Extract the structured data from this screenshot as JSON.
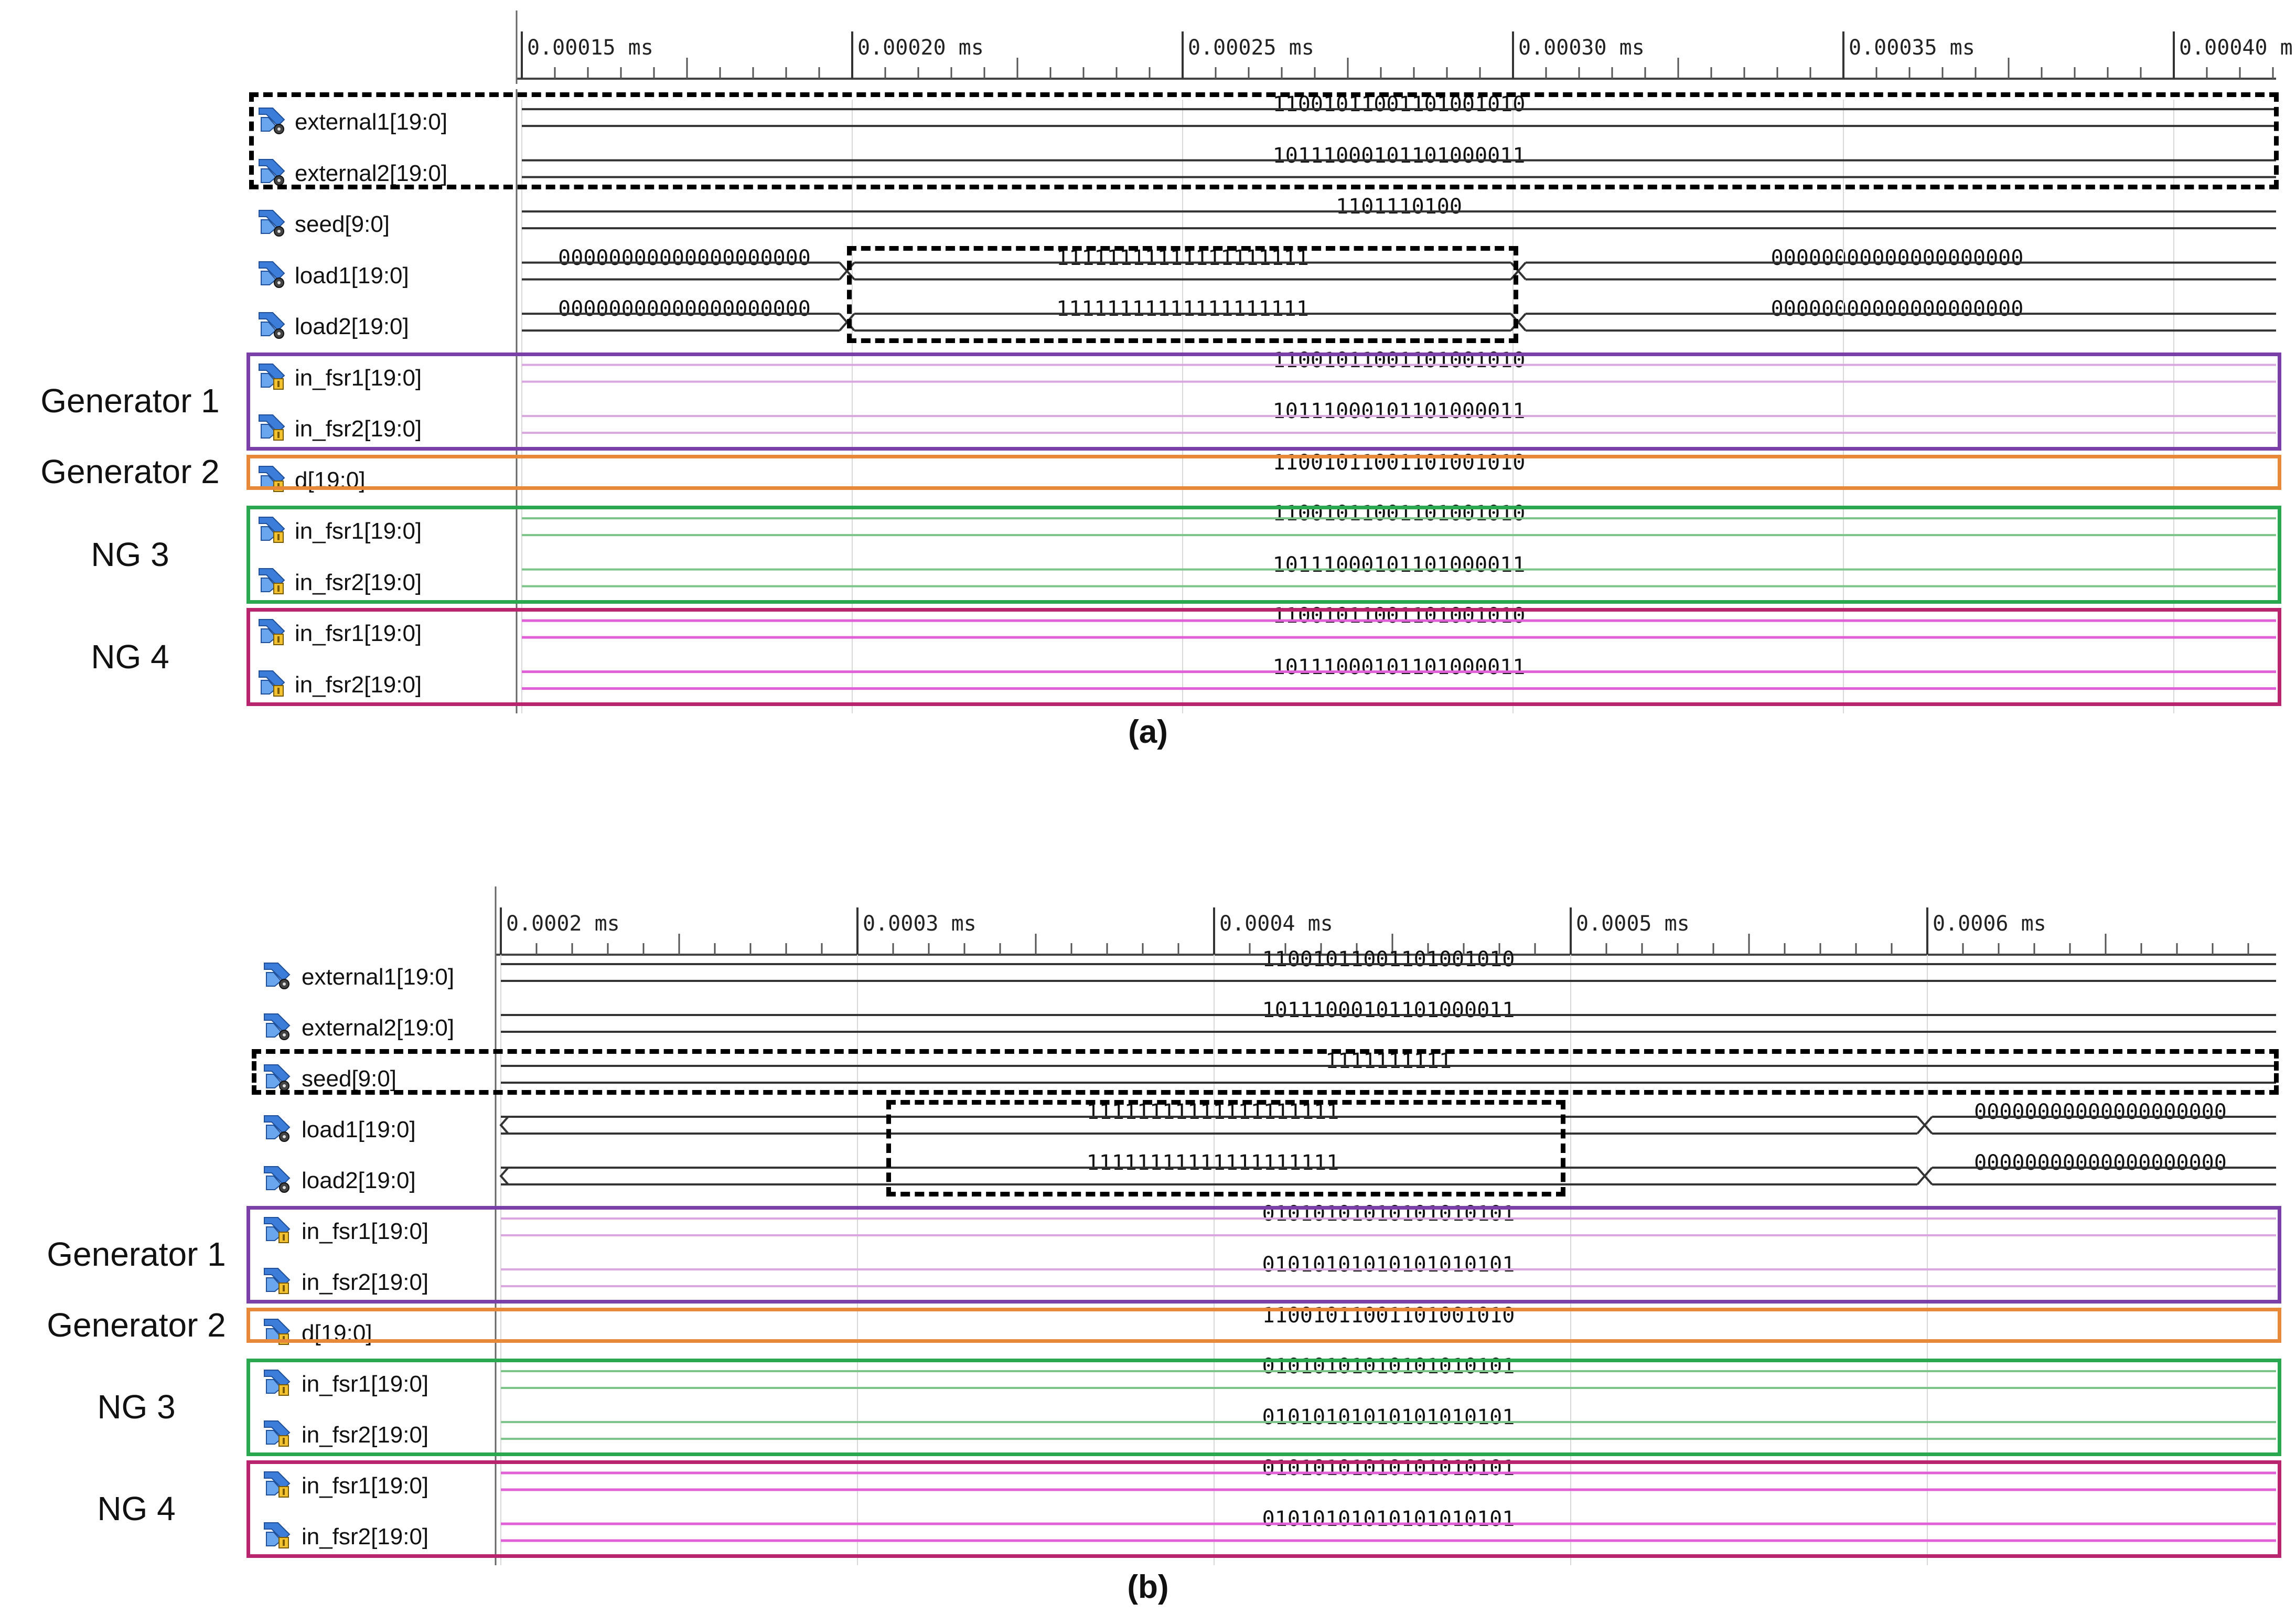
{
  "panels": [
    {
      "id": "a",
      "caption": "(a)",
      "ticks": [
        "0.00015 ms",
        "0.00020 ms",
        "0.00025 ms",
        "0.00030 ms",
        "0.00035 ms",
        "0.00040 m"
      ],
      "signals": [
        {
          "name": "external1[19:0]",
          "icon": "register-icon",
          "waves": [
            {
              "value": "11001011001101001010",
              "style": "bus"
            }
          ]
        },
        {
          "name": "external2[19:0]",
          "icon": "register-icon",
          "waves": [
            {
              "value": "10111000101101000011",
              "style": "bus"
            }
          ]
        },
        {
          "name": "seed[9:0]",
          "icon": "register-icon",
          "waves": [
            {
              "value": "1101110100",
              "style": "bus"
            }
          ]
        },
        {
          "name": "load1[19:0]",
          "icon": "register-icon",
          "waves": [
            {
              "value": "00000000000000000000",
              "style": "bus"
            },
            {
              "value": "11111111111111111111",
              "style": "bus"
            },
            {
              "value": "00000000000000000000",
              "style": "bus"
            }
          ]
        },
        {
          "name": "load2[19:0]",
          "icon": "register-icon",
          "waves": [
            {
              "value": "00000000000000000000",
              "style": "bus"
            },
            {
              "value": "11111111111111111111",
              "style": "bus"
            },
            {
              "value": "00000000000000000000",
              "style": "bus"
            }
          ]
        },
        {
          "name": "in_fsr1[19:0]",
          "icon": "wire-icon",
          "waves": [
            {
              "value": "11001011001101001010",
              "style": "violet"
            }
          ]
        },
        {
          "name": "in_fsr2[19:0]",
          "icon": "wire-icon",
          "waves": [
            {
              "value": "10111000101101000011",
              "style": "violet"
            }
          ]
        },
        {
          "name": "d[19:0]",
          "icon": "wire-icon",
          "waves": [
            {
              "value": "11001011001101001010",
              "style": "none"
            }
          ]
        },
        {
          "name": "in_fsr1[19:0]",
          "icon": "wire-icon",
          "waves": [
            {
              "value": "11001011001101001010",
              "style": "green"
            }
          ]
        },
        {
          "name": "in_fsr2[19:0]",
          "icon": "wire-icon",
          "waves": [
            {
              "value": "10111000101101000011",
              "style": "green"
            }
          ]
        },
        {
          "name": "in_fsr1[19:0]",
          "icon": "wire-icon",
          "waves": [
            {
              "value": "11001011001101001010",
              "style": "magenta"
            }
          ]
        },
        {
          "name": "in_fsr2[19:0]",
          "icon": "wire-icon",
          "waves": [
            {
              "value": "10111000101101000011",
              "style": "magenta"
            }
          ]
        }
      ],
      "groups": [
        {
          "label": "Generator 1",
          "color": "#7b3fa8"
        },
        {
          "label": "Generator 2",
          "color": "#e8893a"
        },
        {
          "label": "NG 3",
          "color": "#2aa84f"
        },
        {
          "label": "NG 4",
          "color": "#b8246e"
        }
      ]
    },
    {
      "id": "b",
      "caption": "(b)",
      "ticks": [
        "0.0002 ms",
        "0.0003 ms",
        "0.0004 ms",
        "0.0005 ms",
        "0.0006 ms"
      ],
      "signals": [
        {
          "name": "external1[19:0]",
          "icon": "register-icon",
          "waves": [
            {
              "value": "11001011001101001010",
              "style": "bus"
            }
          ]
        },
        {
          "name": "external2[19:0]",
          "icon": "register-icon",
          "waves": [
            {
              "value": "10111000101101000011",
              "style": "bus"
            }
          ]
        },
        {
          "name": "seed[9:0]",
          "icon": "register-icon",
          "waves": [
            {
              "value": "1111111111",
              "style": "bus"
            }
          ]
        },
        {
          "name": "load1[19:0]",
          "icon": "register-icon",
          "waves": [
            {
              "value": "11111111111111111111",
              "style": "bus"
            },
            {
              "value": "00000000000000000000",
              "style": "bus"
            }
          ]
        },
        {
          "name": "load2[19:0]",
          "icon": "register-icon",
          "waves": [
            {
              "value": "11111111111111111111",
              "style": "bus"
            },
            {
              "value": "00000000000000000000",
              "style": "bus"
            }
          ]
        },
        {
          "name": "in_fsr1[19:0]",
          "icon": "wire-icon",
          "waves": [
            {
              "value": "01010101010101010101",
              "style": "violet"
            }
          ]
        },
        {
          "name": "in_fsr2[19:0]",
          "icon": "wire-icon",
          "waves": [
            {
              "value": "01010101010101010101",
              "style": "violet"
            }
          ]
        },
        {
          "name": "d[19:0]",
          "icon": "wire-icon",
          "waves": [
            {
              "value": "11001011001101001010",
              "style": "none"
            }
          ]
        },
        {
          "name": "in_fsr1[19:0]",
          "icon": "wire-icon",
          "waves": [
            {
              "value": "01010101010101010101",
              "style": "green"
            }
          ]
        },
        {
          "name": "in_fsr2[19:0]",
          "icon": "wire-icon",
          "waves": [
            {
              "value": "01010101010101010101",
              "style": "green"
            }
          ]
        },
        {
          "name": "in_fsr1[19:0]",
          "icon": "wire-icon",
          "waves": [
            {
              "value": "01010101010101010101",
              "style": "magenta"
            }
          ]
        },
        {
          "name": "in_fsr2[19:0]",
          "icon": "wire-icon",
          "waves": [
            {
              "value": "01010101010101010101",
              "style": "magenta"
            }
          ]
        }
      ],
      "groups": [
        {
          "label": "Generator 1",
          "color": "#7b3fa8"
        },
        {
          "label": "Generator 2",
          "color": "#e8893a"
        },
        {
          "label": "NG 3",
          "color": "#2aa84f"
        },
        {
          "label": "NG 4",
          "color": "#b8246e"
        }
      ]
    }
  ],
  "colors": {
    "bus": "#333333",
    "violet": "#d9a6e0",
    "green": "#7cc48a",
    "magenta": "#e060d8",
    "grid": "#d8d8d8"
  }
}
